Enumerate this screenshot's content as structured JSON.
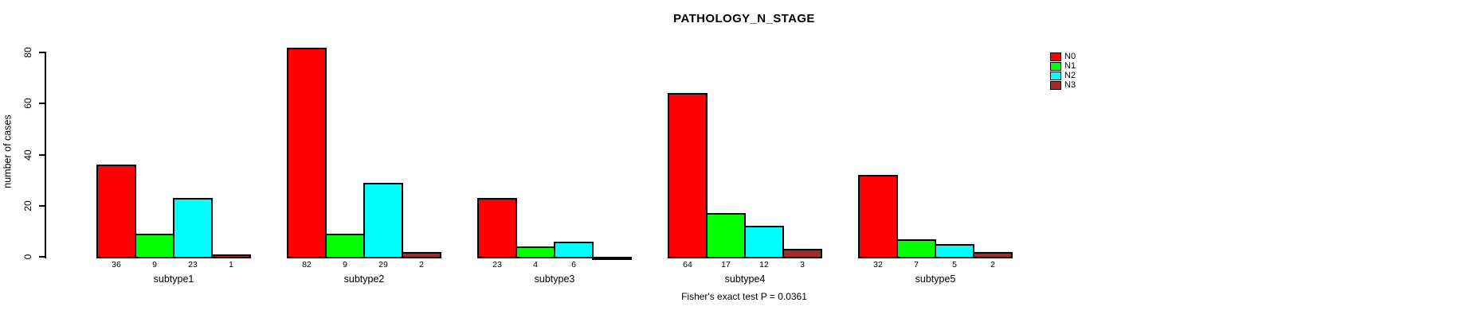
{
  "chart_data": {
    "type": "bar",
    "title": "PATHOLOGY_N_STAGE",
    "ylabel": "number of cases",
    "xlabel": "",
    "categories": [
      "subtype1",
      "subtype2",
      "subtype3",
      "subtype4",
      "subtype5"
    ],
    "series": [
      {
        "name": "N0",
        "color": "#ff0000",
        "values": [
          36,
          82,
          23,
          64,
          32
        ]
      },
      {
        "name": "N1",
        "color": "#00ff00",
        "values": [
          9,
          9,
          4,
          17,
          7
        ]
      },
      {
        "name": "N2",
        "color": "#00ffff",
        "values": [
          23,
          29,
          6,
          12,
          5
        ]
      },
      {
        "name": "N3",
        "color": "#a52a2a",
        "values": [
          1,
          2,
          0,
          3,
          2
        ]
      }
    ],
    "yticks": [
      0,
      20,
      40,
      60,
      80
    ],
    "ylim": [
      0,
      82
    ],
    "grid": false,
    "legend_position": "top-right",
    "bar_value_labels": true,
    "annotation": "Fisher's exact test P = 0.0361",
    "axis_color": "#000000",
    "background_color": "#ffffff"
  }
}
